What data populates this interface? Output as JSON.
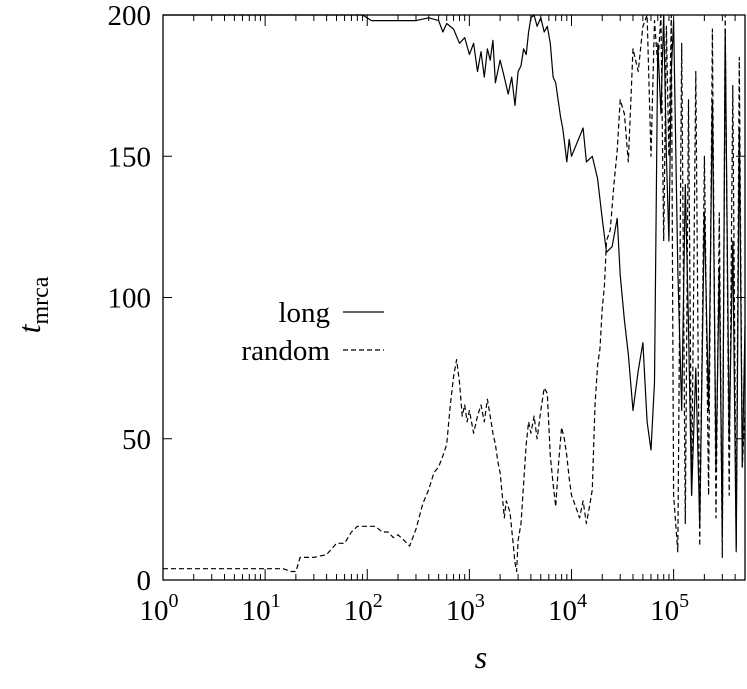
{
  "chart_data": {
    "type": "line",
    "xlabel": "s",
    "ylabel_main": "t",
    "ylabel_sub": "mrca",
    "xscale": "log",
    "xlim": [
      1,
      500000
    ],
    "ylim": [
      0,
      200
    ],
    "y_ticks": [
      0,
      50,
      100,
      150,
      200
    ],
    "x_ticks": [
      {
        "value": 1,
        "base": "10",
        "exp": "0"
      },
      {
        "value": 10,
        "base": "10",
        "exp": "1"
      },
      {
        "value": 100,
        "base": "10",
        "exp": "2"
      },
      {
        "value": 1000,
        "base": "10",
        "exp": "3"
      },
      {
        "value": 10000,
        "base": "10",
        "exp": "4"
      },
      {
        "value": 100000,
        "base": "10",
        "exp": "5"
      }
    ],
    "legend": "middle-left",
    "grid": false,
    "series": [
      {
        "name": "long",
        "dash": "solid",
        "points": [
          [
            1,
            200
          ],
          [
            10,
            200
          ],
          [
            40,
            200
          ],
          [
            70,
            200
          ],
          [
            90,
            200
          ],
          [
            110,
            198
          ],
          [
            200,
            198
          ],
          [
            300,
            198
          ],
          [
            400,
            199
          ],
          [
            500,
            198
          ],
          [
            550,
            194
          ],
          [
            600,
            197
          ],
          [
            700,
            195
          ],
          [
            800,
            190
          ],
          [
            900,
            192
          ],
          [
            1000,
            186
          ],
          [
            1100,
            190
          ],
          [
            1200,
            180
          ],
          [
            1300,
            187
          ],
          [
            1400,
            178
          ],
          [
            1500,
            188
          ],
          [
            1600,
            184
          ],
          [
            1700,
            191
          ],
          [
            1800,
            176
          ],
          [
            2000,
            184
          ],
          [
            2200,
            178
          ],
          [
            2400,
            172
          ],
          [
            2600,
            178
          ],
          [
            2800,
            168
          ],
          [
            3000,
            180
          ],
          [
            3200,
            182
          ],
          [
            3400,
            188
          ],
          [
            3600,
            186
          ],
          [
            3800,
            194
          ],
          [
            4000,
            199
          ],
          [
            4300,
            200
          ],
          [
            4600,
            196
          ],
          [
            5000,
            199
          ],
          [
            5400,
            194
          ],
          [
            5800,
            196
          ],
          [
            6200,
            190
          ],
          [
            6600,
            178
          ],
          [
            7000,
            176
          ],
          [
            7400,
            170
          ],
          [
            7800,
            164
          ],
          [
            8200,
            160
          ],
          [
            8600,
            154
          ],
          [
            9000,
            148
          ],
          [
            9500,
            156
          ],
          [
            10000,
            150
          ],
          [
            13000,
            160
          ],
          [
            14000,
            148
          ],
          [
            16000,
            150
          ],
          [
            18000,
            142
          ],
          [
            20000,
            128
          ],
          [
            22000,
            116
          ],
          [
            25000,
            118
          ],
          [
            28000,
            128
          ],
          [
            30000,
            108
          ],
          [
            33000,
            92
          ],
          [
            36000,
            80
          ],
          [
            40000,
            60
          ],
          [
            45000,
            74
          ],
          [
            50000,
            84
          ],
          [
            55000,
            56
          ],
          [
            60000,
            46
          ],
          [
            65000,
            70
          ],
          [
            70000,
            190
          ],
          [
            75000,
            165
          ],
          [
            80000,
            200
          ],
          [
            85000,
            150
          ],
          [
            90000,
            120
          ],
          [
            95000,
            180
          ],
          [
            100000,
            198
          ],
          [
            110000,
            110
          ],
          [
            120000,
            60
          ],
          [
            130000,
            140
          ],
          [
            140000,
            90
          ],
          [
            150000,
            30
          ],
          [
            165000,
            75
          ],
          [
            180000,
            20
          ],
          [
            200000,
            130
          ],
          [
            220000,
            60
          ],
          [
            240000,
            170
          ],
          [
            260000,
            40
          ],
          [
            280000,
            110
          ],
          [
            300000,
            15
          ],
          [
            320000,
            195
          ],
          [
            350000,
            50
          ],
          [
            380000,
            120
          ],
          [
            410000,
            10
          ],
          [
            440000,
            160
          ],
          [
            470000,
            40
          ],
          [
            500000,
            90
          ]
        ]
      },
      {
        "name": "random",
        "dash": "dashed",
        "points": [
          [
            1,
            4
          ],
          [
            5,
            4
          ],
          [
            10,
            4
          ],
          [
            15,
            4
          ],
          [
            18,
            3
          ],
          [
            20,
            3
          ],
          [
            22,
            8
          ],
          [
            30,
            8
          ],
          [
            40,
            9
          ],
          [
            50,
            13
          ],
          [
            60,
            13
          ],
          [
            70,
            17
          ],
          [
            80,
            19
          ],
          [
            100,
            19
          ],
          [
            120,
            19
          ],
          [
            140,
            17
          ],
          [
            160,
            17
          ],
          [
            180,
            15
          ],
          [
            200,
            16
          ],
          [
            230,
            14
          ],
          [
            260,
            12
          ],
          [
            300,
            18
          ],
          [
            350,
            27
          ],
          [
            400,
            32
          ],
          [
            450,
            38
          ],
          [
            500,
            40
          ],
          [
            550,
            44
          ],
          [
            600,
            48
          ],
          [
            650,
            62
          ],
          [
            700,
            72
          ],
          [
            750,
            78
          ],
          [
            800,
            70
          ],
          [
            850,
            58
          ],
          [
            900,
            62
          ],
          [
            950,
            56
          ],
          [
            1000,
            60
          ],
          [
            1100,
            52
          ],
          [
            1200,
            58
          ],
          [
            1300,
            62
          ],
          [
            1400,
            56
          ],
          [
            1500,
            64
          ],
          [
            1600,
            58
          ],
          [
            1700,
            52
          ],
          [
            1800,
            48
          ],
          [
            1900,
            42
          ],
          [
            2000,
            38
          ],
          [
            2100,
            30
          ],
          [
            2200,
            22
          ],
          [
            2300,
            28
          ],
          [
            2500,
            24
          ],
          [
            2700,
            12
          ],
          [
            2800,
            6
          ],
          [
            2900,
            3
          ],
          [
            3000,
            14
          ],
          [
            3200,
            20
          ],
          [
            3400,
            34
          ],
          [
            3600,
            48
          ],
          [
            3800,
            56
          ],
          [
            4000,
            52
          ],
          [
            4300,
            58
          ],
          [
            4600,
            50
          ],
          [
            5000,
            60
          ],
          [
            5400,
            68
          ],
          [
            5800,
            66
          ],
          [
            6200,
            44
          ],
          [
            6600,
            34
          ],
          [
            7000,
            26
          ],
          [
            7500,
            42
          ],
          [
            8000,
            54
          ],
          [
            8500,
            50
          ],
          [
            9000,
            44
          ],
          [
            9500,
            36
          ],
          [
            10000,
            30
          ],
          [
            11000,
            26
          ],
          [
            12000,
            22
          ],
          [
            13000,
            28
          ],
          [
            14000,
            20
          ],
          [
            15000,
            26
          ],
          [
            16000,
            32
          ],
          [
            17000,
            62
          ],
          [
            18000,
            76
          ],
          [
            19000,
            82
          ],
          [
            20000,
            96
          ],
          [
            21000,
            104
          ],
          [
            22000,
            120
          ],
          [
            24000,
            124
          ],
          [
            26000,
            140
          ],
          [
            28000,
            152
          ],
          [
            30000,
            170
          ],
          [
            33000,
            165
          ],
          [
            36000,
            148
          ],
          [
            40000,
            188
          ],
          [
            45000,
            180
          ],
          [
            50000,
            196
          ],
          [
            55000,
            200
          ],
          [
            60000,
            150
          ],
          [
            65000,
            198
          ],
          [
            70000,
            182
          ],
          [
            75000,
            200
          ],
          [
            80000,
            120
          ],
          [
            85000,
            196
          ],
          [
            90000,
            150
          ],
          [
            95000,
            200
          ],
          [
            100000,
            30
          ],
          [
            110000,
            10
          ],
          [
            120000,
            190
          ],
          [
            130000,
            20
          ],
          [
            140000,
            170
          ],
          [
            150000,
            30
          ],
          [
            165000,
            180
          ],
          [
            180000,
            12
          ],
          [
            200000,
            150
          ],
          [
            220000,
            30
          ],
          [
            240000,
            195
          ],
          [
            260000,
            22
          ],
          [
            280000,
            130
          ],
          [
            300000,
            8
          ],
          [
            320000,
            200
          ],
          [
            350000,
            30
          ],
          [
            380000,
            175
          ],
          [
            410000,
            12
          ],
          [
            440000,
            185
          ],
          [
            470000,
            40
          ],
          [
            500000,
            60
          ]
        ]
      }
    ]
  }
}
